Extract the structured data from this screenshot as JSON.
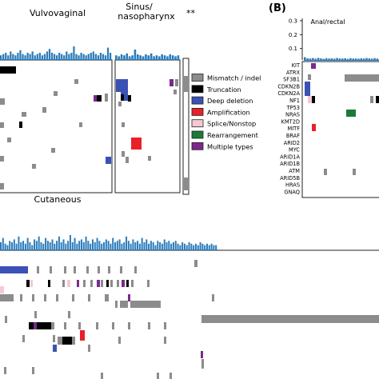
{
  "panels": {
    "vulvovaginal_title": "Vulvovaginal",
    "sinus_title_line1": "Sinus/",
    "sinus_title_line2": "nasopharynx",
    "sinus_sig": "**",
    "cutaneous_title": "Cutaneous",
    "panel_b_letter": "(B)",
    "panel_b_title": "Anal/rectal"
  },
  "legend": {
    "items": [
      {
        "label": "Mismatch / indel",
        "color": "#8c8c8c"
      },
      {
        "label": "Truncation",
        "color": "#000000"
      },
      {
        "label": "Deep deletion",
        "color": "#3a52b5"
      },
      {
        "label": "Amplification",
        "color": "#e8202a"
      },
      {
        "label": "Splice/Nonstop",
        "color": "#f7c8d2"
      },
      {
        "label": "Rearrangement",
        "color": "#1a7a3a"
      },
      {
        "label": "Multiple types",
        "color": "#7b2a8c"
      }
    ]
  },
  "chart_data": [
    {
      "type": "heatmap",
      "title": "Anal/rectal",
      "yticks": [
        0.1,
        0.2,
        0.3
      ],
      "ylim": [
        0,
        0.3
      ],
      "genes": [
        "KIT",
        "ATRX",
        "SF3B1",
        "CDKN2B",
        "CDKN2A",
        "NF1",
        "TP53",
        "NRAS",
        "KMT2D",
        "MITF",
        "BRAF",
        "ARID2",
        "MYC",
        "ARID1A",
        "ARID1B",
        "ATM",
        "ARID5B",
        "HRAS",
        "GNAQ"
      ],
      "mutation_burden": [
        0.02,
        0.012,
        0.01,
        0.014,
        0.009,
        0.015,
        0.011,
        0.008,
        0.013,
        0.01,
        0.012,
        0.009,
        0.014,
        0.011,
        0.01,
        0.012,
        0.008,
        0.013,
        0.01,
        0.011,
        0.009,
        0.012,
        0.01,
        0.014,
        0.011,
        0.009,
        0.013,
        0.01
      ]
    },
    {
      "type": "heatmap",
      "title": "Vulvovaginal",
      "mutation_burden": [
        0.3,
        0.4,
        0.5,
        0.3,
        0.6,
        0.4,
        0.3,
        0.5,
        0.7,
        0.4,
        0.3,
        0.5,
        0.4,
        0.6,
        0.3,
        0.4,
        0.5,
        0.3,
        0.4,
        0.6,
        0.8,
        0.5,
        0.4,
        0.3,
        0.5,
        0.4,
        0.3,
        0.6,
        0.4,
        0.5,
        1.0,
        0.4,
        0.3,
        0.5,
        0.4,
        0.3,
        0.4,
        0.5,
        0.6,
        0.4,
        0.3,
        0.5,
        0.4,
        0.3,
        0.9,
        0.5
      ]
    },
    {
      "type": "heatmap",
      "title": "Sinus/nasopharynx",
      "mutation_burden": [
        0.4,
        0.3,
        0.5,
        0.4,
        0.6,
        0.3,
        0.4,
        1.0,
        0.5,
        0.4,
        0.3,
        0.5,
        0.4,
        0.6,
        0.3,
        0.4,
        0.3,
        0.5,
        0.4,
        0.3,
        0.5,
        0.4,
        0.3,
        0.4
      ]
    },
    {
      "type": "heatmap",
      "title": "Cutaneous",
      "mutation_burden": [
        0.5,
        0.8,
        0.4,
        0.3,
        0.6,
        0.5,
        0.7,
        0.4,
        0.9,
        0.5,
        0.6,
        0.4,
        0.8,
        0.5,
        0.3,
        0.7,
        0.6,
        0.9,
        0.5,
        0.4,
        0.8,
        0.6,
        0.5,
        0.7,
        0.4,
        0.6,
        0.9,
        0.5,
        0.7,
        0.4,
        0.6,
        1.0,
        0.5,
        0.8,
        0.4,
        0.6,
        0.7,
        0.5,
        0.9,
        0.6,
        0.4,
        0.7,
        0.5,
        0.8,
        0.6,
        0.4,
        0.5,
        0.7,
        0.6,
        0.4,
        0.8,
        0.5,
        0.6,
        0.7,
        0.4,
        0.5,
        0.9,
        0.6,
        0.4,
        0.7,
        0.5,
        0.6,
        0.4,
        0.8,
        0.5,
        0.7,
        0.4,
        0.6,
        0.5,
        0.3,
        0.6,
        0.5,
        0.4,
        0.7,
        0.5,
        0.6,
        0.4,
        0.5,
        0.6,
        0.4,
        0.3,
        0.5,
        0.4,
        0.3,
        0.5,
        0.4,
        0.3,
        0.4,
        0.3,
        0.5,
        0.4,
        0.3,
        0.4,
        0.3,
        0.4,
        0.3,
        0.3
      ]
    }
  ]
}
